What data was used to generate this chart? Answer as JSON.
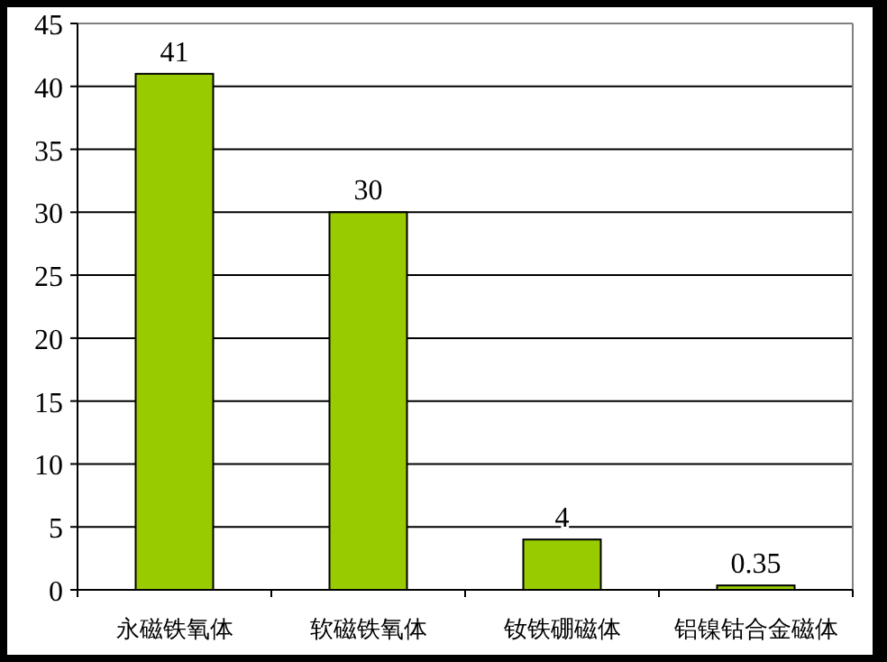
{
  "chart_data": {
    "type": "bar",
    "categories": [
      "永磁铁氧体",
      "软磁铁氧体",
      "钕铁硼磁体",
      "铝镍钴合金磁体"
    ],
    "values": [
      41,
      30,
      4,
      0.35
    ],
    "color": "#99cc00",
    "ylim": [
      0,
      45
    ],
    "yticks": [
      0,
      5,
      10,
      15,
      20,
      25,
      30,
      35,
      40,
      45
    ],
    "grid": "y",
    "data_labels": true
  }
}
